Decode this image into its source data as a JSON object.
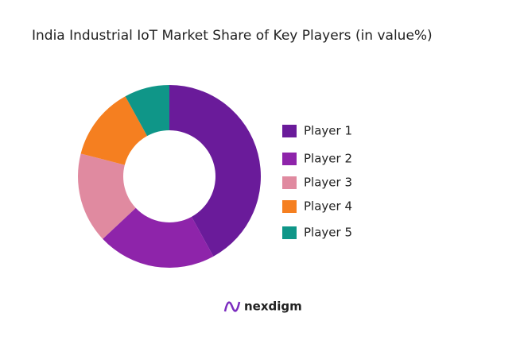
{
  "chart_data": {
    "type": "donut",
    "title": "India Industrial IoT Market Share of Key Players (in value%)",
    "categories": [
      "Player 1",
      "Player 2",
      "Player 3",
      "Player 4",
      "Player 5"
    ],
    "values": [
      42,
      21,
      16,
      13,
      8
    ],
    "colors": [
      "#6a1b9a",
      "#8e24aa",
      "#e08aa0",
      "#f57f20",
      "#0f9688"
    ]
  },
  "brand": "nexdigm"
}
